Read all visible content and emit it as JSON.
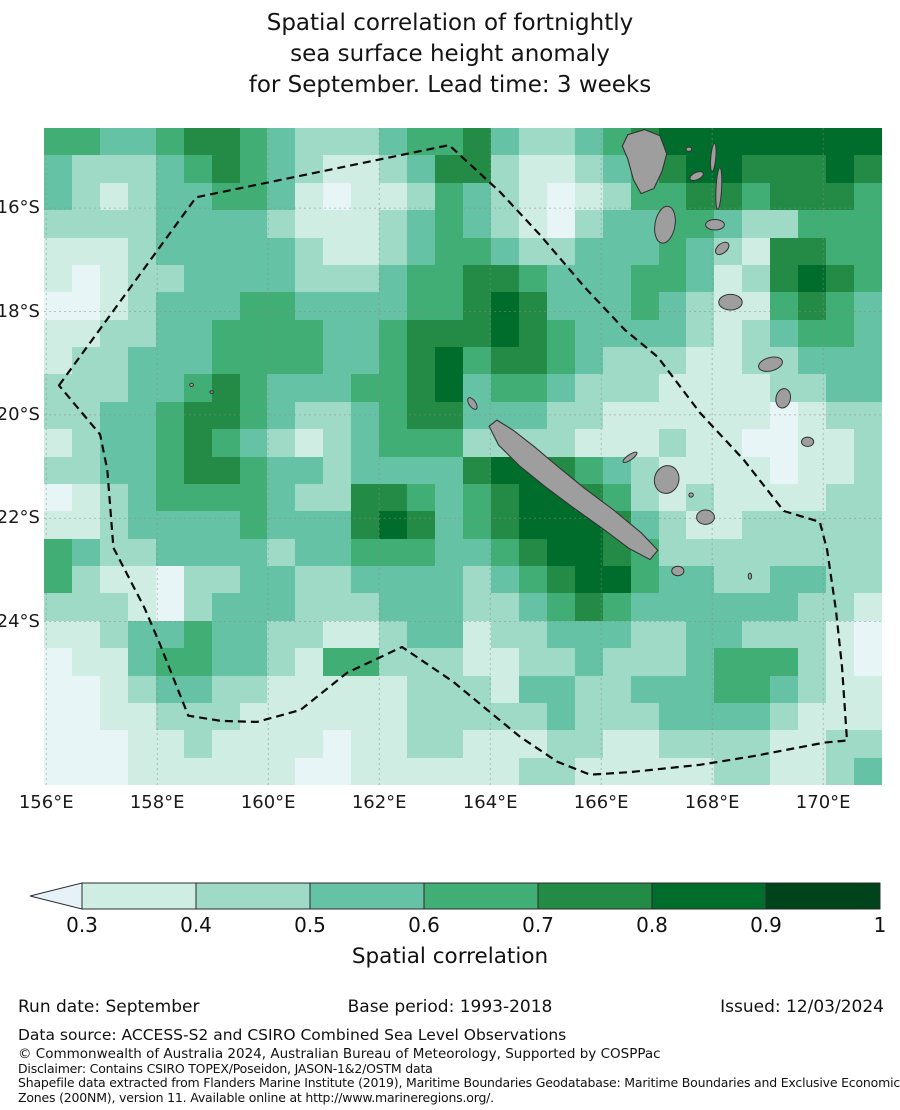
{
  "figure": {
    "title_lines": [
      "Spatial correlation of fortnightly",
      "sea surface height anomaly",
      "for September. Lead time: 3 weeks"
    ]
  },
  "x_axis": {
    "ticks": [
      {
        "label": "156°E",
        "lon": 156
      },
      {
        "label": "158°E",
        "lon": 158
      },
      {
        "label": "160°E",
        "lon": 160
      },
      {
        "label": "162°E",
        "lon": 162
      },
      {
        "label": "164°E",
        "lon": 164
      },
      {
        "label": "166°E",
        "lon": 166
      },
      {
        "label": "168°E",
        "lon": 168
      },
      {
        "label": "170°E",
        "lon": 170
      }
    ]
  },
  "y_axis": {
    "ticks": [
      {
        "label": "16°S",
        "lat": -16
      },
      {
        "label": "18°S",
        "lat": -18
      },
      {
        "label": "20°S",
        "lat": -20
      },
      {
        "label": "22°S",
        "lat": -22
      },
      {
        "label": "24°S",
        "lat": -24
      }
    ]
  },
  "colorbar": {
    "tick_labels": [
      "0.3",
      "0.4",
      "0.5",
      "0.6",
      "0.7",
      "0.8",
      "0.9",
      "1"
    ],
    "label": "Spatial correlation",
    "arrow_color": "#e7f2f8",
    "segment_colors": [
      "#cfede2",
      "#9fdac7",
      "#66c2a4",
      "#41ae76",
      "#238b45",
      "#016d2c",
      "#00441b"
    ]
  },
  "footer": {
    "run_date": "Run date: September",
    "base_period": "Base period: 1993-2018",
    "issued": "Issued: 12/03/2024",
    "data_source": "Data source: ACCESS-S2 and CSIRO Combined Sea Level Observations",
    "copyright": "© Commonwealth of Australia 2024, Australian Bureau of Meteorology, Supported by COSPPac",
    "disclaimer": "Disclaimer: Contains CSIRO TOPEX/Poseidon, JASON-1&2/OSTM data",
    "shapefile_line1": "Shapefile data extracted from Flanders Marine Institute (2019), Maritime Boundaries Geodatabase: Maritime Boundaries and Exclusive Economic",
    "shapefile_line2": "Zones (200NM), version 11. Available online at http://www.marineregions.org/."
  },
  "chart_data": {
    "type": "heatmap",
    "title": "Spatial correlation of fortnightly sea surface height anomaly for September. Lead time: 3 weeks",
    "legend_label": "Spatial correlation",
    "geo": {
      "lon_range": [
        155.96,
        171.06
      ],
      "lat_range": [
        -27.16,
        -14.45
      ]
    },
    "bins": {
      "edges": [
        0.3,
        0.4,
        0.5,
        0.6,
        0.7,
        0.8,
        0.9,
        1.0
      ],
      "note": "index 0 = below 0.3 (left arrow on colorbar)"
    },
    "bin_values": [
      0.25,
      0.35,
      0.45,
      0.55,
      0.65,
      0.75,
      0.85,
      0.95
    ],
    "palette": [
      "#e8f5f6",
      "#cfede2",
      "#9fdac7",
      "#66c2a4",
      "#41ae76",
      "#238b45",
      "#016d2c",
      "#00441b"
    ],
    "grid_cols": 30,
    "grid_rows": 24,
    "grid": [
      "443345543222344532234566666666",
      "322234543211235521123456655565",
      "321233443101124321012445545554",
      "222233332111234321023344322444",
      "111233333211234432233343215544",
      "101223333222344554333443125654",
      "001233344333344565333432114543",
      "112233444433455565433332123443",
      "122333444433456455432221122333",
      "222334543334456344322211112233",
      "223345543223455333221111110122",
      "123345432123444222211121100112",
      "223345543323333566543211110112",
      "012344443225543456654212111122",
      "112333343335653456665321122222",
      "432233332334443345665422222222",
      "421102233223333234566433223322",
      "222102333222333223454333333221",
      "112334332211233122333223322210",
      "011344332144222112232223444210",
      "001233221111122213322333443211",
      "001122211111122222322233332111",
      "000112111101122111221122221122",
      "000111111001111112211111221123"
    ],
    "gridline_lons": [
      156,
      158,
      160,
      162,
      164,
      166,
      168,
      170
    ],
    "gridline_lats": [
      -16,
      -18,
      -20,
      -22,
      -24
    ],
    "eez_boundary_lonlat": [
      [
        156.23,
        -19.43
      ],
      [
        158.7,
        -15.79
      ],
      [
        163.26,
        -14.78
      ],
      [
        164.18,
        -15.69
      ],
      [
        164.9,
        -16.52
      ],
      [
        165.71,
        -17.54
      ],
      [
        166.43,
        -18.36
      ],
      [
        167.02,
        -18.88
      ],
      [
        167.78,
        -19.96
      ],
      [
        168.57,
        -20.87
      ],
      [
        169.29,
        -21.86
      ],
      [
        169.94,
        -22.07
      ],
      [
        170.07,
        -22.61
      ],
      [
        170.23,
        -23.77
      ],
      [
        170.34,
        -24.87
      ],
      [
        170.43,
        -26.3
      ],
      [
        170.02,
        -26.34
      ],
      [
        168.75,
        -26.6
      ],
      [
        167.78,
        -26.77
      ],
      [
        166.52,
        -26.91
      ],
      [
        165.8,
        -26.96
      ],
      [
        165.21,
        -26.71
      ],
      [
        164.54,
        -26.23
      ],
      [
        163.95,
        -25.71
      ],
      [
        163.33,
        -25.16
      ],
      [
        162.41,
        -24.49
      ],
      [
        161.42,
        -24.99
      ],
      [
        160.58,
        -25.71
      ],
      [
        159.8,
        -25.94
      ],
      [
        159.15,
        -25.92
      ],
      [
        158.56,
        -25.82
      ],
      [
        158.04,
        -24.41
      ],
      [
        157.77,
        -23.73
      ],
      [
        157.21,
        -22.57
      ],
      [
        157.1,
        -21.06
      ],
      [
        156.97,
        -20.38
      ]
    ],
    "islands": [
      {
        "name": "grande-terre",
        "poly": [
          [
            163.98,
            -20.22
          ],
          [
            164.12,
            -20.1
          ],
          [
            164.42,
            -20.3
          ],
          [
            164.8,
            -20.62
          ],
          [
            165.22,
            -21.0
          ],
          [
            165.7,
            -21.42
          ],
          [
            166.2,
            -21.82
          ],
          [
            166.72,
            -22.28
          ],
          [
            167.02,
            -22.62
          ],
          [
            166.88,
            -22.8
          ],
          [
            166.5,
            -22.58
          ],
          [
            166.0,
            -22.18
          ],
          [
            165.48,
            -21.78
          ],
          [
            164.98,
            -21.38
          ],
          [
            164.52,
            -20.98
          ],
          [
            164.15,
            -20.58
          ]
        ]
      },
      {
        "name": "belep",
        "ellipse": [
          163.68,
          -19.78,
          0.06,
          0.13,
          -35
        ]
      },
      {
        "name": "ile-des-pins",
        "ellipse": [
          167.38,
          -23.02,
          0.11,
          0.09,
          0
        ]
      },
      {
        "name": "ouvea",
        "ellipse": [
          166.52,
          -20.82,
          0.15,
          0.05,
          -35
        ]
      },
      {
        "name": "lifou",
        "ellipse": [
          167.18,
          -21.25,
          0.22,
          0.27,
          15
        ]
      },
      {
        "name": "tiga",
        "ellipse": [
          167.62,
          -21.55,
          0.04,
          0.04,
          0
        ]
      },
      {
        "name": "mare",
        "ellipse": [
          167.88,
          -21.98,
          0.16,
          0.14,
          0
        ]
      },
      {
        "name": "walpole",
        "ellipse": [
          168.68,
          -23.12,
          0.03,
          0.06,
          0
        ]
      },
      {
        "name": "espiritu-santo",
        "poly": [
          [
            166.48,
            -14.58
          ],
          [
            166.78,
            -14.48
          ],
          [
            167.06,
            -14.6
          ],
          [
            167.18,
            -14.95
          ],
          [
            167.1,
            -15.28
          ],
          [
            166.95,
            -15.62
          ],
          [
            166.72,
            -15.72
          ],
          [
            166.58,
            -15.45
          ],
          [
            166.48,
            -15.05
          ],
          [
            166.38,
            -14.8
          ]
        ]
      },
      {
        "name": "malakula",
        "ellipse": [
          167.15,
          -16.32,
          0.18,
          0.36,
          10
        ]
      },
      {
        "name": "ambae",
        "ellipse": [
          167.72,
          -15.38,
          0.13,
          0.07,
          -25
        ]
      },
      {
        "name": "maewo",
        "ellipse": [
          168.02,
          -15.02,
          0.045,
          0.27,
          5
        ]
      },
      {
        "name": "pentecost",
        "ellipse": [
          168.12,
          -15.62,
          0.05,
          0.4,
          3
        ]
      },
      {
        "name": "ambrym",
        "ellipse": [
          168.05,
          -16.32,
          0.17,
          0.1,
          0
        ]
      },
      {
        "name": "epi",
        "ellipse": [
          168.18,
          -16.78,
          0.14,
          0.09,
          -40
        ]
      },
      {
        "name": "efate",
        "ellipse": [
          168.33,
          -17.82,
          0.21,
          0.15,
          0
        ]
      },
      {
        "name": "erromango",
        "ellipse": [
          169.05,
          -19.02,
          0.22,
          0.13,
          -15
        ]
      },
      {
        "name": "tanna",
        "ellipse": [
          169.28,
          -19.68,
          0.13,
          0.19,
          12
        ]
      },
      {
        "name": "aneityum",
        "ellipse": [
          169.72,
          -20.52,
          0.11,
          0.09,
          0
        ]
      },
      {
        "name": "banks-islet",
        "ellipse": [
          167.58,
          -14.86,
          0.05,
          0.04,
          0
        ]
      },
      {
        "name": "chesterfield-reef-1",
        "ellipse": [
          158.62,
          -19.42,
          0.035,
          0.03,
          0
        ]
      },
      {
        "name": "chesterfield-reef-2",
        "ellipse": [
          158.98,
          -19.56,
          0.03,
          0.025,
          0
        ]
      }
    ]
  }
}
